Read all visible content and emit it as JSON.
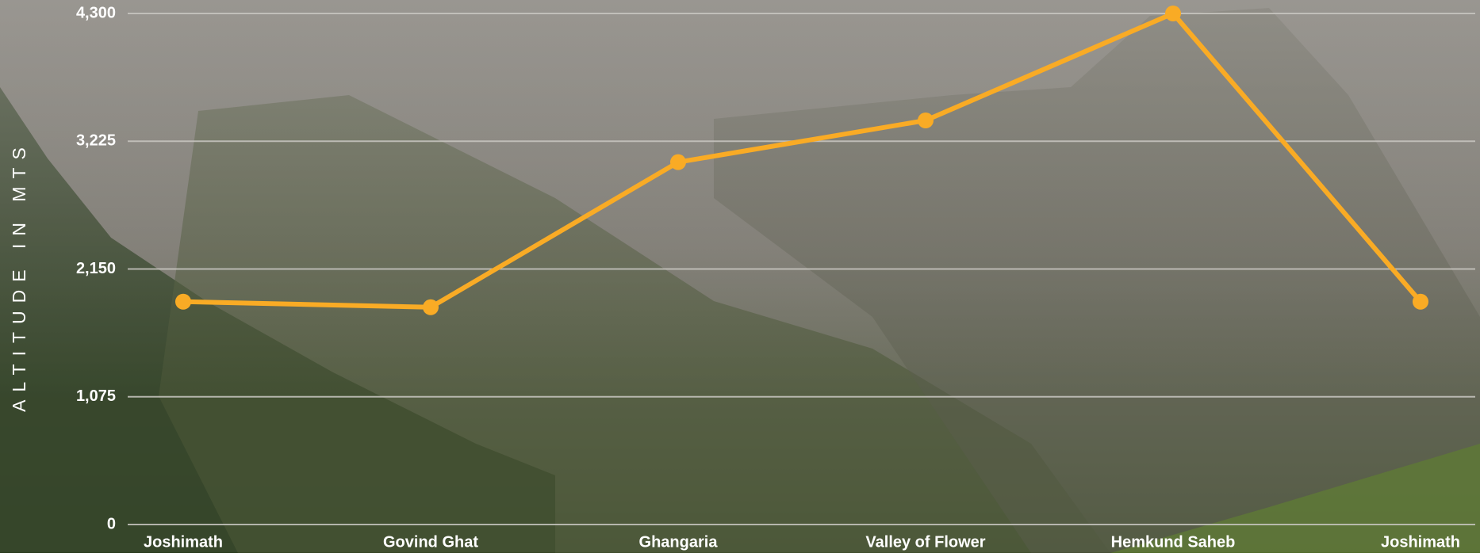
{
  "chart_data": {
    "type": "line",
    "y_label": "ALTITUDE IN MTS",
    "categories": [
      "Joshimath",
      "Govind Ghat",
      "Ghangaria",
      "Valley of Flower",
      "Hemkund Saheb",
      "Joshimath"
    ],
    "values": [
      1875,
      1828,
      3049,
      3400,
      4300,
      1875
    ],
    "color": "#f9ab25",
    "ylim": [
      0,
      4300
    ],
    "yticks": [
      0,
      {
        "value": 1075,
        "label": "1,075"
      },
      {
        "value": 2150,
        "label": "2,150"
      },
      {
        "value": 3225,
        "label": "3,225"
      },
      {
        "value": 4300,
        "label": "4,300"
      }
    ],
    "grid": true
  }
}
